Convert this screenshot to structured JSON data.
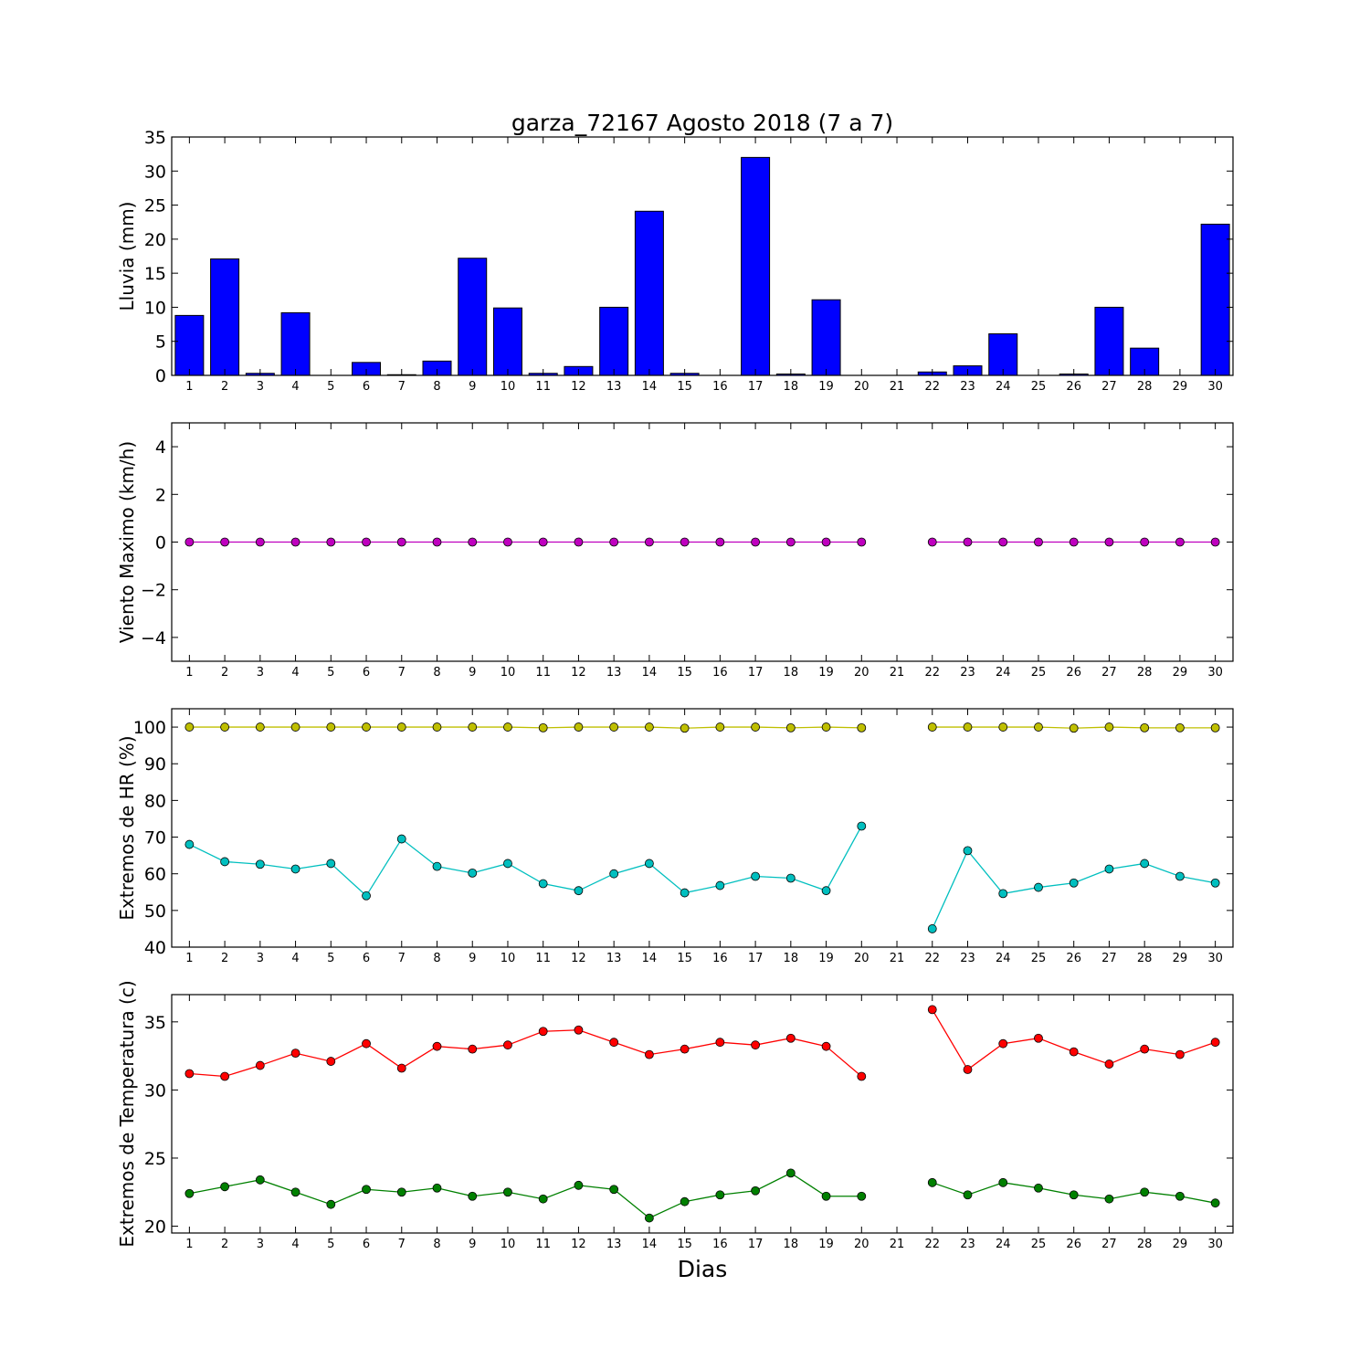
{
  "figure": {
    "title": "garza_72167 Agosto 2018  (7 a 7)",
    "xlabel": "Dias"
  },
  "chart_data": [
    {
      "type": "bar",
      "ylabel": "Lluvia (mm)",
      "ylim": [
        0,
        35
      ],
      "yticks": [
        "0",
        "5",
        "10",
        "15",
        "20",
        "25",
        "30",
        "35"
      ],
      "xticks": [
        "1",
        "2",
        "3",
        "4",
        "5",
        "6",
        "7",
        "8",
        "9",
        "10",
        "11",
        "12",
        "13",
        "14",
        "15",
        "16",
        "17",
        "18",
        "19",
        "20",
        "21",
        "22",
        "23",
        "24",
        "25",
        "26",
        "27",
        "28",
        "29",
        "30"
      ],
      "color": "#0000ff",
      "series": [
        {
          "values": [
            8.8,
            17.1,
            0.3,
            9.2,
            0,
            1.9,
            0.1,
            2.1,
            17.2,
            9.9,
            0.3,
            1.3,
            10.0,
            24.1,
            0.3,
            0,
            32.0,
            0.2,
            11.1,
            0,
            0,
            0.5,
            1.4,
            6.1,
            0,
            0.2,
            10.0,
            4.0,
            0,
            22.2
          ]
        }
      ]
    },
    {
      "type": "line",
      "ylabel": "Viento Maximo (km/h)",
      "ylim": [
        -5,
        5
      ],
      "yticks": [
        "−4",
        "−2",
        "0",
        "2",
        "4"
      ],
      "xticks": [
        "1",
        "2",
        "3",
        "4",
        "5",
        "6",
        "7",
        "8",
        "9",
        "10",
        "11",
        "12",
        "13",
        "14",
        "15",
        "16",
        "17",
        "18",
        "19",
        "20",
        "21",
        "22",
        "23",
        "24",
        "25",
        "26",
        "27",
        "28",
        "29",
        "30"
      ],
      "series": [
        {
          "color": "#bf00bf",
          "values": [
            0,
            0,
            0,
            0,
            0,
            0,
            0,
            0,
            0,
            0,
            0,
            0,
            0,
            0,
            0,
            0,
            0,
            0,
            0,
            0,
            null,
            0,
            0,
            0,
            0,
            0,
            0,
            0,
            0,
            0
          ]
        }
      ]
    },
    {
      "type": "line",
      "ylabel": "Extremos de HR (%)",
      "ylim": [
        40,
        105
      ],
      "yticks": [
        "40",
        "50",
        "60",
        "70",
        "80",
        "90",
        "100"
      ],
      "xticks": [
        "1",
        "2",
        "3",
        "4",
        "5",
        "6",
        "7",
        "8",
        "9",
        "10",
        "11",
        "12",
        "13",
        "14",
        "15",
        "16",
        "17",
        "18",
        "19",
        "20",
        "21",
        "22",
        "23",
        "24",
        "25",
        "26",
        "27",
        "28",
        "29",
        "30"
      ],
      "series": [
        {
          "color": "#bfbf00",
          "values": [
            100,
            100,
            100,
            100,
            100,
            100,
            100,
            100,
            100,
            100,
            99.8,
            100,
            100,
            100,
            99.7,
            100,
            100,
            99.8,
            100,
            99.8,
            null,
            100,
            100,
            100,
            100,
            99.7,
            100,
            99.8,
            99.8,
            99.8
          ]
        },
        {
          "color": "#00bfbf",
          "values": [
            68,
            63.3,
            62.6,
            61.3,
            62.8,
            54,
            69.5,
            62,
            60.2,
            62.8,
            57.3,
            55.4,
            60,
            62.8,
            54.8,
            56.8,
            59.3,
            58.8,
            55.4,
            73,
            null,
            45,
            66.3,
            54.6,
            56.3,
            57.5,
            61.3,
            62.8,
            59.3,
            57.5
          ]
        }
      ]
    },
    {
      "type": "line",
      "ylabel": "Extremos de Temperatura (c)",
      "ylim": [
        19.5,
        37
      ],
      "yticks": [
        "20",
        "25",
        "30",
        "35"
      ],
      "xticks": [
        "1",
        "2",
        "3",
        "4",
        "5",
        "6",
        "7",
        "8",
        "9",
        "10",
        "11",
        "12",
        "13",
        "14",
        "15",
        "16",
        "17",
        "18",
        "19",
        "20",
        "21",
        "22",
        "23",
        "24",
        "25",
        "26",
        "27",
        "28",
        "29",
        "30"
      ],
      "series": [
        {
          "color": "#ff0000",
          "values": [
            31.2,
            31,
            31.8,
            32.7,
            32.1,
            33.4,
            31.6,
            33.2,
            33,
            33.3,
            34.3,
            34.4,
            33.5,
            32.6,
            33,
            33.5,
            33.3,
            33.8,
            33.2,
            31,
            null,
            35.9,
            31.5,
            33.4,
            33.8,
            32.8,
            31.9,
            33,
            32.6,
            33.5
          ]
        },
        {
          "color": "#008000",
          "values": [
            22.4,
            22.9,
            23.4,
            22.5,
            21.6,
            22.7,
            22.5,
            22.8,
            22.2,
            22.5,
            22,
            23,
            22.7,
            20.6,
            21.8,
            22.3,
            22.6,
            23.9,
            22.2,
            22.2,
            null,
            23.2,
            22.3,
            23.2,
            22.8,
            22.3,
            22,
            22.5,
            22.2,
            21.7
          ]
        }
      ]
    }
  ]
}
